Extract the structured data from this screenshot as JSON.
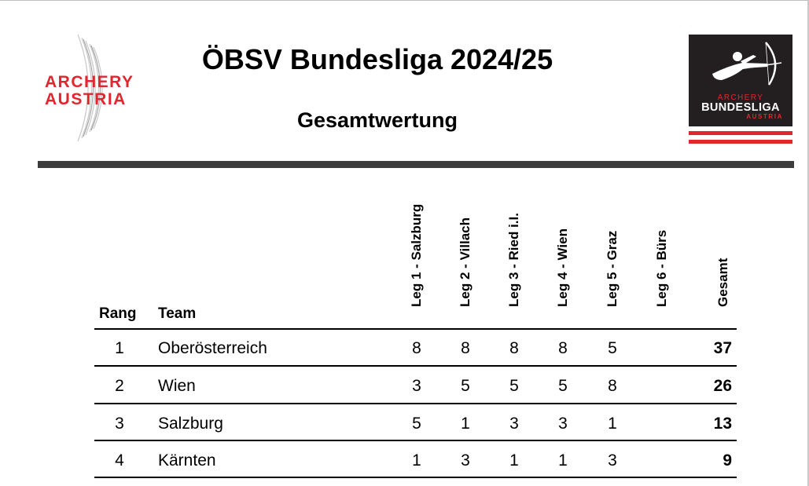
{
  "header": {
    "title": "ÖBSV Bundesliga 2024/25",
    "subtitle": "Gesamtwertung"
  },
  "logo_left": {
    "line1": "ARCHERY",
    "line2": "AUSTRIA",
    "color": "#e2262e"
  },
  "logo_right": {
    "line1": "ARCHERY",
    "line2": "BUNDESLIGA",
    "line3": "AUSTRIA",
    "bg": "#231f20",
    "accent": "#e2262e"
  },
  "table": {
    "headers": {
      "rank": "Rang",
      "team": "Team",
      "legs": [
        "Leg 1 - Salzburg",
        "Leg 2 - Villach",
        "Leg 3 - Ried i.I.",
        "Leg 4 - Wien",
        "Leg 5 - Graz",
        "Leg 6 - Bürs"
      ],
      "total": "Gesamt"
    },
    "rows": [
      {
        "rank": "1",
        "team": "Oberösterreich",
        "legs": [
          "8",
          "8",
          "8",
          "8",
          "5",
          ""
        ],
        "total": "37"
      },
      {
        "rank": "2",
        "team": "Wien",
        "legs": [
          "3",
          "5",
          "5",
          "5",
          "8",
          ""
        ],
        "total": "26"
      },
      {
        "rank": "3",
        "team": "Salzburg",
        "legs": [
          "5",
          "1",
          "3",
          "3",
          "1",
          ""
        ],
        "total": "13"
      },
      {
        "rank": "4",
        "team": "Kärnten",
        "legs": [
          "1",
          "3",
          "1",
          "1",
          "3",
          ""
        ],
        "total": "9"
      }
    ]
  }
}
